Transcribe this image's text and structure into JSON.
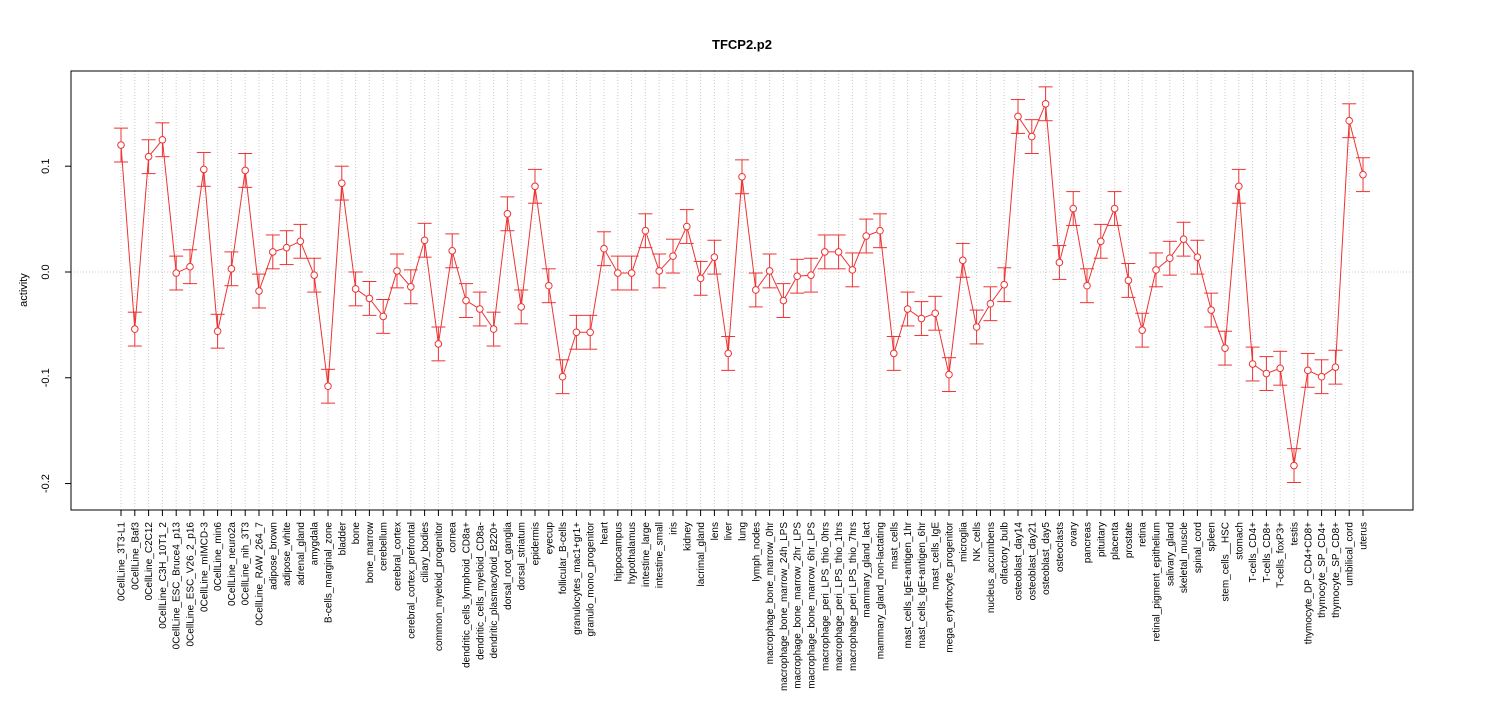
{
  "chart_data": {
    "type": "line",
    "title": "TFCP2.p2",
    "xlabel": "",
    "ylabel": "activity",
    "ylim": [
      -0.225,
      0.19
    ],
    "yticks": [
      -0.2,
      -0.1,
      0.0,
      0.1
    ],
    "ytick_labels": [
      "-0.2",
      "-0.1",
      "0.0",
      "0.1"
    ],
    "grid": true,
    "series_color": "#ee3333",
    "grid_color": "#cccccc",
    "categories": [
      "0CellLine_3T3-L1",
      "0CellLine_Baf3",
      "0CellLine_C2C12",
      "0CellLine_C3H_10T1_2",
      "0CellLine_ESC_Bruce4_p13",
      "0CellLine_ESC_V26_2_p16",
      "0CellLine_mIMCD-3",
      "0CellLine_min6",
      "0CellLine_neuro2a",
      "0CellLine_nih_3T3",
      "0CellLine_RAW_264_7",
      "adipose_brown",
      "adipose_white",
      "adrenal_gland",
      "amygdala",
      "B-cells_marginal_zone",
      "bladder",
      "bone",
      "bone_marrow",
      "cerebellum",
      "cerebral_cortex",
      "cerebral_cortex_prefrontal",
      "ciliary_bodies",
      "common_myeloid_progenitor",
      "cornea",
      "dendritic_cells_lymphoid_CD8a+",
      "dendritic_cells_myeloid_CD8a-",
      "dendritic_plasmacytoid_B220+",
      "dorsal_root_ganglia",
      "dorsal_striatum",
      "epidermis",
      "eyecup",
      "follicular_B-cells",
      "granulocytes_mac1+gr1+",
      "granulo_mono_progenitor",
      "heart",
      "hippocampus",
      "hypothalamus",
      "intestine_large",
      "intestine_small",
      "iris",
      "kidney",
      "lacrimal_gland",
      "lens",
      "liver",
      "lung",
      "lymph_nodes",
      "macrophage_bone_marrow_0hr",
      "macrophage_bone_marrow_24h_LPS",
      "macrophage_bone_marrow_2hr_LPS",
      "macrophage_bone_marrow_6hr_LPS",
      "macrophage_peri_LPS_thio_0hrs",
      "macrophage_peri_LPS_thio_1hrs",
      "macrophage_peri_LPS_thio_7hrs",
      "mammary_gland_lact",
      "mammary_gland_non-lactating",
      "mast_cells",
      "mast_cells_IgE+antigen_1hr",
      "mast_cells_IgE+antigen_6hr",
      "mast_cells_IgE",
      "mega_erythrocyte_progenitor",
      "microglia",
      "NK_cells",
      "nucleus_accumbens",
      "olfactory_bulb",
      "osteoblast_day14",
      "osteoblast_day21",
      "osteoblast_day5",
      "osteoclasts",
      "ovary",
      "pancreas",
      "pituitary",
      "placenta",
      "prostate",
      "retina",
      "retinal_pigment_epithelium",
      "salivary_gland",
      "skeletal_muscle",
      "spinal_cord",
      "spleen",
      "stem_cells__HSC",
      "stomach",
      "T-cells_CD4+",
      "T-cells_CD8+",
      "T-cells_foxP3+",
      "testis",
      "thymocyte_DP_CD4+CD8+",
      "thymocyte_SP_CD4+",
      "thymocyte_SP_CD8+",
      "umbilical_cord",
      "uterus"
    ],
    "values": [
      0.12,
      -0.054,
      0.109,
      0.125,
      -0.001,
      0.005,
      0.097,
      -0.056,
      0.003,
      0.096,
      -0.018,
      0.019,
      0.023,
      0.029,
      -0.003,
      -0.108,
      0.084,
      -0.016,
      -0.025,
      -0.042,
      0.001,
      -0.014,
      0.03,
      -0.068,
      0.02,
      -0.027,
      -0.035,
      -0.054,
      0.055,
      -0.033,
      0.081,
      -0.013,
      -0.099,
      -0.057,
      -0.057,
      0.022,
      -0.001,
      -0.001,
      0.039,
      0.001,
      0.015,
      0.043,
      -0.006,
      0.014,
      -0.077,
      0.09,
      -0.017,
      0.001,
      -0.027,
      -0.004,
      -0.003,
      0.019,
      0.019,
      0.002,
      0.034,
      0.039,
      -0.077,
      -0.035,
      -0.044,
      -0.039,
      -0.097,
      0.011,
      -0.052,
      -0.03,
      -0.012,
      0.147,
      0.128,
      0.159,
      0.009,
      0.06,
      -0.013,
      0.029,
      0.06,
      -0.008,
      -0.055,
      0.002,
      0.013,
      0.031,
      0.014,
      -0.036,
      -0.072,
      0.081,
      -0.087,
      -0.096,
      -0.091,
      -0.183,
      -0.093,
      -0.099,
      -0.09,
      0.143,
      0.092
    ],
    "error": 0.016
  }
}
